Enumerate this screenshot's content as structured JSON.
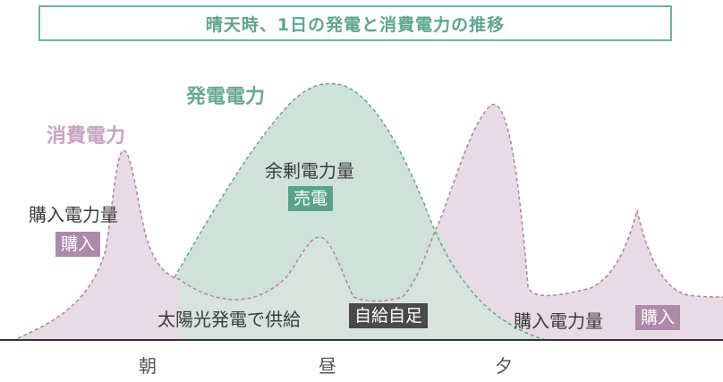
{
  "title": "晴天時、1日の発電と消費電力の推移",
  "series": {
    "generation": "発電電力",
    "consumption": "消費電力"
  },
  "labels": {
    "purchase_left": "購入電力量",
    "purchase_left_tag": "購入",
    "surplus": "余剰電力量",
    "surplus_tag": "売電",
    "solar_supply": "太陽光発電で供給",
    "self_sufficiency_tag": "自給自足",
    "purchase_right": "購入電力量",
    "purchase_right_tag": "購入"
  },
  "time_axis": {
    "morning": "朝",
    "noon": "昼",
    "evening": "夕"
  },
  "colors": {
    "generation_fill": "#cfe2d9",
    "generation_stroke": "#6aa993",
    "consumption_fill": "#e8dbe6",
    "consumption_stroke": "#b7869e",
    "accent_green": "#5aa38b",
    "accent_purple": "#ad8aa9"
  }
}
